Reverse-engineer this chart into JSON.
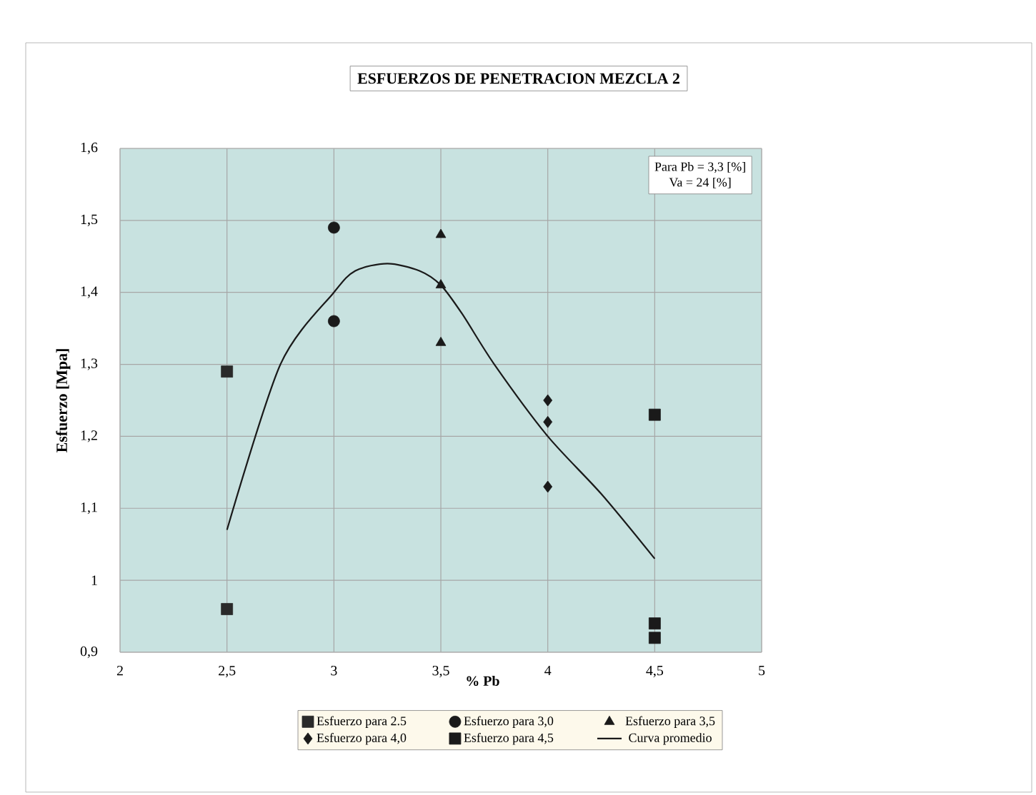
{
  "chart_data": {
    "type": "scatter",
    "title": "ESFUERZOS DE PENETRACION MEZCLA 2",
    "xlabel": "% Pb",
    "ylabel": "Esfuerzo  [Mpa]",
    "annotations": [
      "Para Pb = 3,3 [%]",
      "Va = 24 [%]"
    ],
    "xlim": [
      2,
      5
    ],
    "ylim": [
      0.9,
      1.6
    ],
    "xticks": [
      2,
      {
        "value": 2.5,
        "label": "2,5"
      },
      3,
      {
        "value": 3.5,
        "label": "3,5"
      },
      4,
      {
        "value": 4.5,
        "label": "4,5"
      },
      5
    ],
    "yticks": [
      {
        "value": 0.9,
        "label": "0,9"
      },
      1,
      {
        "value": 1.1,
        "label": "1,1"
      },
      {
        "value": 1.2,
        "label": "1,2"
      },
      {
        "value": 1.3,
        "label": "1,3"
      },
      {
        "value": 1.4,
        "label": "1,4"
      },
      {
        "value": 1.5,
        "label": "1,5"
      },
      {
        "value": 1.6,
        "label": "1,6"
      }
    ],
    "grid": true,
    "legend": "bottom",
    "series": [
      {
        "name": "Esfuerzo para 2.5",
        "color": "#2a2a2a",
        "marker": "square",
        "x": [
          2.5,
          2.5
        ],
        "values": [
          1.29,
          0.96
        ]
      },
      {
        "name": "Esfuerzo para 3,0",
        "color": "#1a1a1a",
        "marker": "circle",
        "x": [
          3,
          3
        ],
        "values": [
          1.49,
          1.36
        ]
      },
      {
        "name": "Esfuerzo para 3,5",
        "color": "#1a1a1a",
        "marker": "triangle",
        "x": [
          3.5,
          3.5,
          3.5
        ],
        "values": [
          1.48,
          1.41,
          1.33
        ]
      },
      {
        "name": "Esfuerzo para 4,0",
        "color": "#1a1a1a",
        "marker": "diamond",
        "x": [
          4,
          4,
          4
        ],
        "values": [
          1.25,
          1.22,
          1.13
        ]
      },
      {
        "name": "Esfuerzo para 4,5",
        "color": "#1a1a1a",
        "marker": "square",
        "x": [
          4.5,
          4.5,
          4.5
        ],
        "values": [
          1.23,
          0.94,
          0.92
        ]
      },
      {
        "name": "Curva promedio",
        "type": "line",
        "color": "#1a1a1a",
        "marker": "none",
        "line_style": "solid",
        "x": [
          2.5,
          2.75,
          3.0,
          3.1,
          3.25,
          3.4,
          3.5,
          3.6,
          3.75,
          4.0,
          4.25,
          4.5
        ],
        "values": [
          1.07,
          1.3,
          1.4,
          1.43,
          1.44,
          1.43,
          1.41,
          1.37,
          1.3,
          1.2,
          1.12,
          1.03
        ]
      }
    ]
  }
}
